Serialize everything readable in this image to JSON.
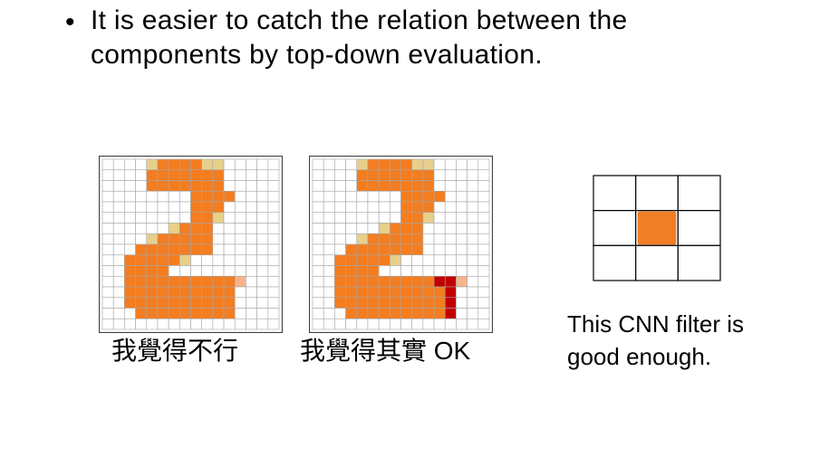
{
  "bullet": {
    "marker": "•",
    "line1": "It is easier to catch the relation between the",
    "line2": "components by top-down evaluation."
  },
  "grids": [
    {
      "caption": "我覺得不行",
      "rows": 16,
      "cols": 16,
      "cells": [
        [
          "....yOOOOyy....."
        ],
        [
          "....OOOOOOO....."
        ],
        [
          "....OOOOOOO....."
        ],
        [
          "........OOOO...."
        ],
        [
          "........OOO....."
        ],
        [
          "........OOy....."
        ],
        [
          "......yOOO......"
        ],
        [
          "....yOOOOO......"
        ],
        [
          "...OOOOOOO......"
        ],
        [
          "..OOOOOy........"
        ],
        [
          "..OOOO.........."
        ],
        [
          "..OOOOOOOOOOp..."
        ],
        [
          "..OOOOOOOOOO...."
        ],
        [
          "..OOOOOOOOOO...."
        ],
        [
          "...OOOOOOOOO...."
        ],
        [
          "................"
        ]
      ]
    },
    {
      "caption": "我覺得其實 OK",
      "rows": 16,
      "cols": 16,
      "cells": [
        [
          "....yOOOOyy....."
        ],
        [
          "....OOOOOOO....."
        ],
        [
          "....OOOOOOO....."
        ],
        [
          "........OOOO...."
        ],
        [
          "........OOO....."
        ],
        [
          "........OOy....."
        ],
        [
          "......yOOO......"
        ],
        [
          "....yOOOOO......"
        ],
        [
          "...OOOOOOO......"
        ],
        [
          "..OOOOOy........"
        ],
        [
          "..OOOO.........."
        ],
        [
          "..OOOOOOOOORRp.."
        ],
        [
          "..OOOOOOOOOOR..."
        ],
        [
          "..OOOOOOOOOOR..."
        ],
        [
          "...OOOOOOOOOR..."
        ],
        [
          "................"
        ]
      ]
    }
  ],
  "colors": {
    "O": "#f47d20",
    "y": "#e8d08a",
    "p": "#f7b48c",
    "R": "#c00000",
    "grid_line": "#a6a6a6",
    "border": "#404040",
    "filter_cell": "#f07e26"
  },
  "filter": {
    "rows": 3,
    "cols": 3,
    "highlight": [
      1,
      1
    ],
    "caption_line1": "This CNN filter is",
    "caption_line2": "good enough."
  }
}
